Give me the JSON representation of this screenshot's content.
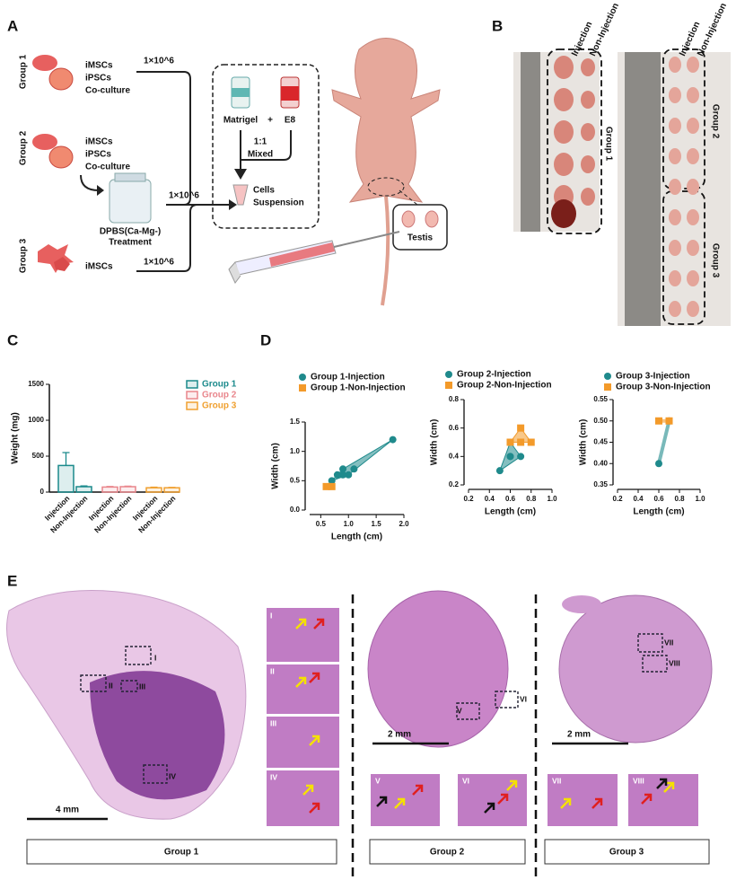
{
  "panel_labels": [
    "A",
    "B",
    "C",
    "D",
    "E"
  ],
  "panel_a": {
    "groups": [
      {
        "label": "Group 1",
        "cells": [
          "iMSCs",
          "iPSCs",
          "Co-culture"
        ],
        "dose": "1×10^6"
      },
      {
        "label": "Group 2",
        "cells": [
          "iMSCs",
          "iPSCs",
          "Co-culture"
        ]
      },
      {
        "label": "Group 3",
        "cells": [
          "iMSCs"
        ],
        "dose": "1×10^6"
      }
    ],
    "treatment": {
      "lines": [
        "DPBS(Ca-Mg-)",
        "Treatment"
      ],
      "dose": "1×10^6"
    },
    "matrigel": "Matrigel",
    "plus": "+",
    "e8": "E8",
    "mix": [
      "1:1",
      "Mixed"
    ],
    "suspension": [
      "Cells",
      "Suspension"
    ],
    "testis": "Testis"
  },
  "panel_b": {
    "columns": [
      "Injection",
      "Non-Injection"
    ],
    "groups": [
      "Group 1",
      "Group 2",
      "Group 3"
    ]
  },
  "chart_data": [
    {
      "type": "bar",
      "y_label": "Weight (mg)",
      "categories": [
        "Injection",
        "Non-Injection",
        "Injection",
        "Non-Injection",
        "Injection",
        "Non-Injection"
      ],
      "series": [
        {
          "name": "Group 1",
          "color": "#1b8a8c",
          "values": [
            370,
            75,
            null,
            null,
            null,
            null
          ],
          "errors": [
            180,
            10,
            null,
            null,
            null,
            null
          ]
        },
        {
          "name": "Group 2",
          "color": "#e9868c",
          "values": [
            null,
            null,
            70,
            75,
            null,
            null
          ],
          "errors": [
            null,
            null,
            8,
            8,
            null,
            null
          ]
        },
        {
          "name": "Group 3",
          "color": "#f0a030",
          "values": [
            null,
            null,
            null,
            null,
            60,
            60
          ],
          "errors": [
            null,
            null,
            null,
            null,
            8,
            6
          ]
        }
      ],
      "ylim": [
        0,
        1500
      ],
      "yticks": [
        0,
        500,
        1000,
        1500
      ],
      "legend": "top-right"
    },
    {
      "type": "scatter",
      "x_label": "Length (cm)",
      "y_label": "Width (cm)",
      "series": [
        {
          "name": "Group 1-Injection",
          "color": "#1f8a8c",
          "marker": "circle",
          "x": [
            0.7,
            0.8,
            0.9,
            1.0,
            1.1,
            0.9,
            1.8
          ],
          "values": [
            0.5,
            0.6,
            0.7,
            0.6,
            0.7,
            0.6,
            1.2
          ]
        },
        {
          "name": "Group 1-Non-Injection",
          "color": "#f39a2a",
          "marker": "square",
          "x": [
            0.6,
            0.7
          ],
          "values": [
            0.4,
            0.4
          ]
        }
      ],
      "xlim": [
        0.3,
        2.0
      ],
      "xticks": [
        0.5,
        {
          "value": 1,
          "label": "1.0"
        },
        1.5,
        {
          "value": 2,
          "label": "2.0"
        }
      ],
      "ylim": [
        0,
        1.5
      ],
      "yticks": [
        {
          "value": 0,
          "label": "0.0"
        },
        0.5,
        {
          "value": 1,
          "label": "1.0"
        },
        1.5
      ]
    },
    {
      "type": "scatter",
      "x_label": "Length (cm)",
      "y_label": "Width (cm)",
      "series": [
        {
          "name": "Group 2-Injection",
          "color": "#1f8a8c",
          "marker": "circle",
          "x": [
            0.5,
            0.6,
            0.6,
            0.7,
            0.6
          ],
          "values": [
            0.3,
            0.4,
            0.5,
            0.4,
            0.4
          ]
        },
        {
          "name": "Group 2-Non-Injection",
          "color": "#f39a2a",
          "marker": "square",
          "x": [
            0.7,
            0.8,
            0.7,
            0.6
          ],
          "values": [
            0.6,
            0.5,
            0.5,
            0.5
          ]
        }
      ],
      "xlim": [
        0.2,
        1.0
      ],
      "xticks": [
        0.2,
        0.4,
        0.6,
        0.8,
        {
          "value": 1,
          "label": "1.0"
        }
      ],
      "ylim": [
        0.2,
        0.8
      ],
      "yticks": [
        0.2,
        0.4,
        0.6,
        0.8
      ]
    },
    {
      "type": "scatter",
      "x_label": "Length (cm)",
      "y_label": "Width (cm)",
      "series": [
        {
          "name": "Group 3-Injection",
          "color": "#1f8a8c",
          "marker": "circle",
          "x": [
            0.6,
            0.7
          ],
          "values": [
            0.4,
            0.5
          ]
        },
        {
          "name": "Group 3-Non-Injection",
          "color": "#f39a2a",
          "marker": "square",
          "x": [
            0.6,
            0.7
          ],
          "values": [
            0.5,
            0.5
          ]
        }
      ],
      "xlim": [
        0.2,
        1.0
      ],
      "xticks": [
        0.2,
        0.4,
        0.6,
        0.8,
        {
          "value": 1,
          "label": "1.0"
        }
      ],
      "ylim": [
        0.35,
        0.55
      ],
      "yticks": [
        0.35,
        {
          "value": 0.4,
          "label": "0.40"
        },
        0.45,
        {
          "value": 0.5,
          "label": "0.50"
        },
        0.55
      ]
    }
  ],
  "panel_e": {
    "insets": [
      "I",
      "II",
      "III",
      "IV",
      "V",
      "VI",
      "VII",
      "VIII"
    ],
    "scale_bars": [
      "4 mm",
      "2 mm",
      "2 mm"
    ],
    "groups": [
      "Group 1",
      "Group 2",
      "Group 3"
    ]
  }
}
